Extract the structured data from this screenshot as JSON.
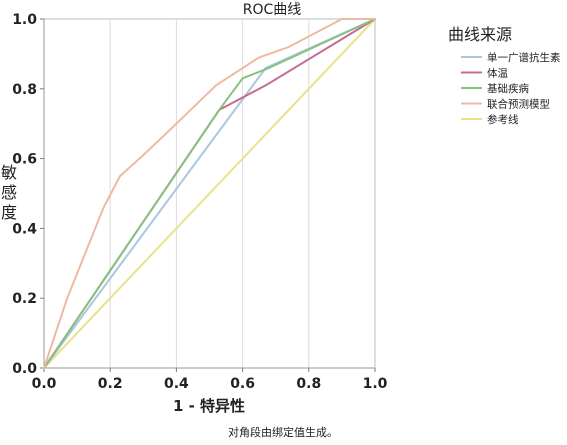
{
  "chart_data": {
    "type": "line",
    "title": "ROC曲线",
    "xlabel": "1 - 特异性",
    "ylabel": "敏感度",
    "xlim": [
      0,
      1
    ],
    "ylim": [
      0,
      1
    ],
    "xticks": [
      "0.0",
      "0.2",
      "0.4",
      "0.6",
      "0.8",
      "1.0"
    ],
    "yticks": [
      "0.0",
      "0.2",
      "0.4",
      "0.6",
      "0.8",
      "1.0"
    ],
    "grid": "vertical",
    "legend_title": "曲线来源",
    "legend_position": "right",
    "footnote": "对角段由绑定值生成。",
    "series": [
      {
        "name": "单一广谱抗生素",
        "color": "#a9c7e0",
        "points": [
          [
            0,
            0
          ],
          [
            0.67,
            0.86
          ],
          [
            1,
            1
          ]
        ]
      },
      {
        "name": "体温",
        "color": "#c66b8f",
        "points": [
          [
            0,
            0
          ],
          [
            0.53,
            0.74
          ],
          [
            0.67,
            0.81
          ],
          [
            1,
            1
          ]
        ]
      },
      {
        "name": "基础疾病",
        "color": "#86c27f",
        "points": [
          [
            0,
            0
          ],
          [
            0.53,
            0.74
          ],
          [
            0.6,
            0.83
          ],
          [
            0.68,
            0.86
          ],
          [
            1,
            1
          ]
        ]
      },
      {
        "name": "联合预测模型",
        "color": "#efb9a4",
        "points": [
          [
            0,
            0
          ],
          [
            0.07,
            0.2
          ],
          [
            0.18,
            0.46
          ],
          [
            0.23,
            0.55
          ],
          [
            0.3,
            0.61
          ],
          [
            0.4,
            0.7
          ],
          [
            0.52,
            0.81
          ],
          [
            0.65,
            0.89
          ],
          [
            0.74,
            0.92
          ],
          [
            0.84,
            0.97
          ],
          [
            0.9,
            1.0
          ],
          [
            1,
            1
          ]
        ]
      },
      {
        "name": "参考线",
        "color": "#e8e28a",
        "points": [
          [
            0,
            0
          ],
          [
            1,
            1
          ]
        ]
      }
    ]
  }
}
